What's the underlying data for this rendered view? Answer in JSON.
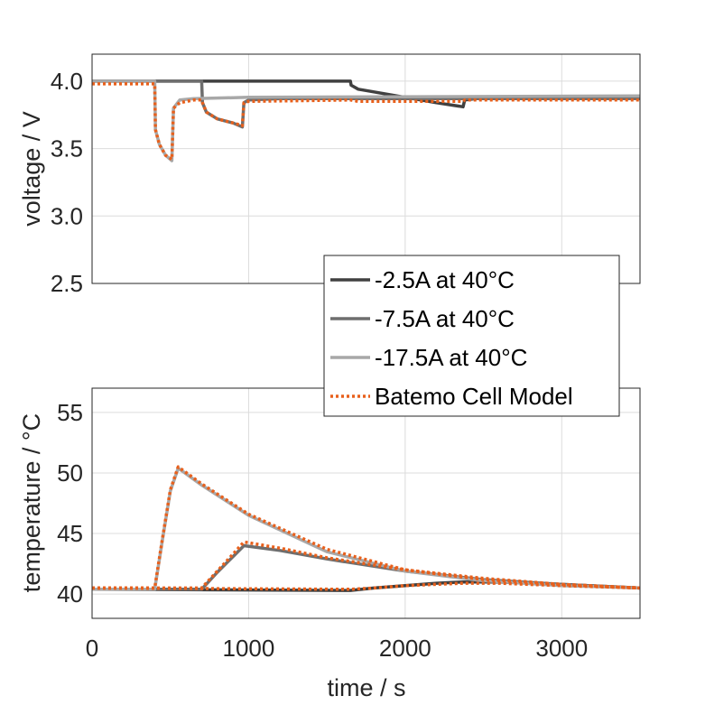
{
  "chart_data": [
    {
      "type": "line",
      "ylabel": "voltage / V",
      "xlim": [
        0,
        3500
      ],
      "ylim": [
        2.5,
        4.2
      ],
      "yticks": [
        "2.5",
        "3.0",
        "3.5",
        "4.0"
      ],
      "ytick_values": [
        2.5,
        3.0,
        3.5,
        4.0
      ],
      "xtick_values": [
        0,
        1000,
        2000,
        3000
      ],
      "grid": true,
      "series": [
        {
          "name": "-2.5A at 40°C",
          "color": "#404040",
          "style": "solid",
          "x": [
            0,
            1650,
            1655,
            1700,
            1800,
            2000,
            2200,
            2370,
            2380,
            2450,
            3500
          ],
          "y": [
            4.0,
            4.0,
            3.97,
            3.94,
            3.92,
            3.88,
            3.84,
            3.81,
            3.86,
            3.87,
            3.87
          ]
        },
        {
          "name": "-7.5A at 40°C",
          "color": "#6e6e6e",
          "style": "solid",
          "x": [
            0,
            700,
            705,
            730,
            800,
            900,
            960,
            970,
            1000,
            1200,
            3500
          ],
          "y": [
            4.0,
            4.0,
            3.84,
            3.77,
            3.72,
            3.69,
            3.66,
            3.84,
            3.86,
            3.87,
            3.87
          ]
        },
        {
          "name": "-17.5A at 40°C",
          "color": "#a8a8a8",
          "style": "solid",
          "x": [
            0,
            400,
            405,
            430,
            470,
            510,
            520,
            560,
            650,
            1000,
            3500
          ],
          "y": [
            4.0,
            4.0,
            3.64,
            3.53,
            3.45,
            3.41,
            3.8,
            3.86,
            3.87,
            3.88,
            3.89
          ]
        },
        {
          "name": "Batemo Cell Model",
          "color": "#e8601c",
          "style": "dotted",
          "x": [
            0,
            400,
            405,
            430,
            470,
            510,
            520,
            560,
            650,
            700,
            705,
            730,
            800,
            900,
            960,
            970,
            1000,
            1650,
            1700,
            2000,
            2370,
            2380,
            3500
          ],
          "y": [
            3.98,
            3.98,
            3.64,
            3.53,
            3.45,
            3.42,
            3.8,
            3.84,
            3.86,
            3.86,
            3.84,
            3.77,
            3.72,
            3.69,
            3.67,
            3.84,
            3.85,
            3.86,
            3.85,
            3.85,
            3.85,
            3.86,
            3.86
          ]
        }
      ]
    },
    {
      "type": "line",
      "xlabel": "time / s",
      "ylabel": "temperature / °C",
      "xlim": [
        0,
        3500
      ],
      "ylim": [
        38,
        57
      ],
      "xticks": [
        "0",
        "1000",
        "2000",
        "3000"
      ],
      "xtick_values": [
        0,
        1000,
        2000,
        3000
      ],
      "yticks": [
        "40",
        "45",
        "50",
        "55"
      ],
      "ytick_values": [
        40,
        45,
        50,
        55
      ],
      "grid": true,
      "series": [
        {
          "name": "-2.5A at 40°C",
          "color": "#404040",
          "style": "solid",
          "x": [
            0,
            1650,
            1800,
            2000,
            2200,
            2370,
            2600,
            3000,
            3500
          ],
          "y": [
            40.4,
            40.3,
            40.5,
            40.7,
            40.9,
            41.0,
            41.0,
            40.8,
            40.5
          ]
        },
        {
          "name": "-7.5A at 40°C",
          "color": "#6e6e6e",
          "style": "solid",
          "x": [
            0,
            700,
            800,
            900,
            970,
            1200,
            1500,
            2000,
            2500,
            3000,
            3500
          ],
          "y": [
            40.4,
            40.4,
            41.8,
            43.1,
            44.0,
            43.6,
            42.9,
            41.9,
            41.2,
            40.8,
            40.5
          ]
        },
        {
          "name": "-17.5A at 40°C",
          "color": "#a8a8a8",
          "style": "solid",
          "x": [
            0,
            400,
            450,
            500,
            550,
            700,
            1000,
            1500,
            2000,
            2500,
            3000,
            3500
          ],
          "y": [
            40.4,
            40.4,
            44.5,
            48.5,
            50.4,
            49.0,
            46.5,
            43.5,
            41.9,
            41.1,
            40.7,
            40.5
          ]
        },
        {
          "name": "Batemo Cell Model",
          "color": "#e8601c",
          "style": "dotted",
          "x": [
            0,
            400,
            450,
            500,
            550,
            700,
            1000,
            1500,
            2000,
            2500,
            3000,
            3500
          ],
          "y": [
            40.5,
            40.5,
            44.6,
            48.6,
            50.5,
            49.1,
            46.6,
            43.7,
            42.0,
            41.2,
            40.8,
            40.5
          ]
        },
        {
          "name": "Batemo Cell Model",
          "color": "#e8601c",
          "style": "dotted",
          "x": [
            0,
            700,
            800,
            900,
            970,
            1200,
            1500,
            2000,
            2500,
            3000,
            3500
          ],
          "y": [
            40.5,
            40.5,
            41.9,
            43.3,
            44.3,
            43.8,
            43.0,
            42.0,
            41.3,
            40.8,
            40.5
          ]
        },
        {
          "name": "Batemo Cell Model",
          "color": "#e8601c",
          "style": "dotted",
          "x": [
            0,
            1650,
            1800,
            2000,
            2200,
            2370,
            2600,
            3000,
            3500
          ],
          "y": [
            40.5,
            40.4,
            40.5,
            40.7,
            40.8,
            40.9,
            40.9,
            40.7,
            40.5
          ]
        }
      ]
    }
  ],
  "legend": {
    "placement": "overlapping lower-right of voltage plot",
    "entries": [
      {
        "label": "-2.5A at 40°C",
        "color": "#404040",
        "style": "solid"
      },
      {
        "label": "-7.5A at 40°C",
        "color": "#6e6e6e",
        "style": "solid"
      },
      {
        "label": "-17.5A at 40°C",
        "color": "#a8a8a8",
        "style": "solid"
      },
      {
        "label": "Batemo Cell Model",
        "color": "#e8601c",
        "style": "dotted"
      }
    ]
  }
}
